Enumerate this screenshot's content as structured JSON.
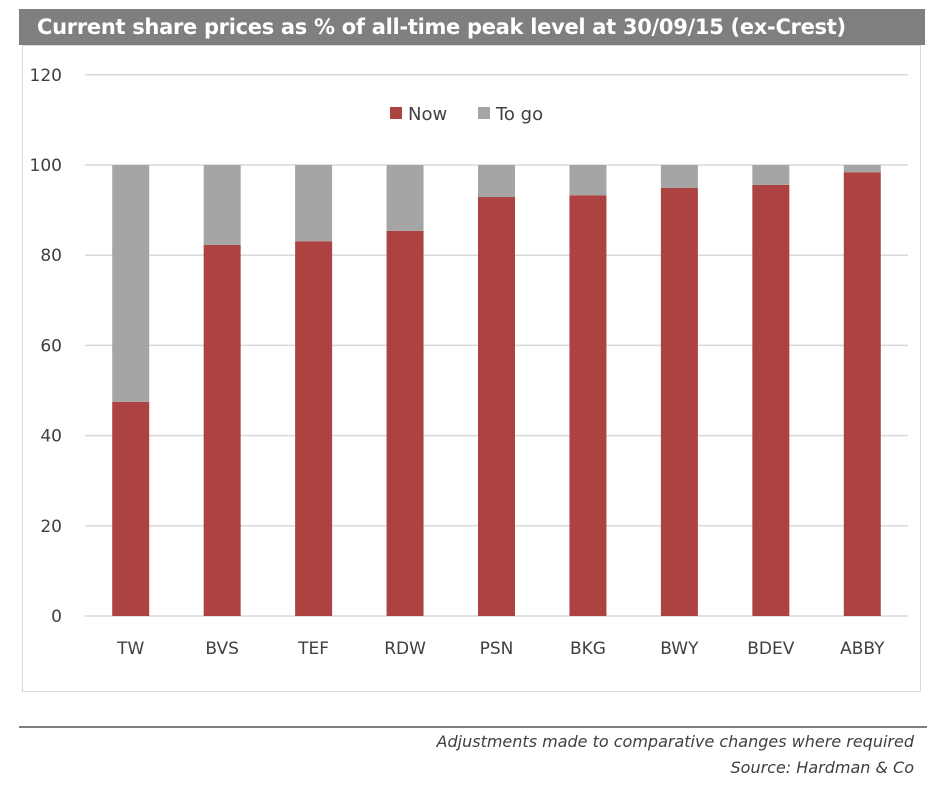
{
  "chart_data": {
    "type": "bar",
    "stacked": true,
    "title": "Current share prices as % of all-time peak level at 30/09/15 (ex-Crest)",
    "categories": [
      "TW",
      "BVS",
      "TEF",
      "RDW",
      "PSN",
      "BKG",
      "BWY",
      "BDEV",
      "ABBY"
    ],
    "series": [
      {
        "name": "Now",
        "color": "#ac4340",
        "values": [
          47.5,
          82.3,
          83.1,
          85.4,
          92.9,
          93.3,
          94.9,
          95.6,
          98.4
        ]
      },
      {
        "name": "To go",
        "color": "#a5a5a5",
        "values": [
          52.5,
          17.7,
          16.9,
          14.6,
          7.1,
          6.7,
          5.1,
          4.4,
          1.6
        ]
      }
    ],
    "yticks": [
      0,
      20,
      40,
      60,
      80,
      100,
      120
    ],
    "ylim": [
      0,
      120
    ],
    "grid": true,
    "legend": "top-center",
    "xlabel": "",
    "ylabel": ""
  },
  "footer": {
    "note": "Adjustments made to comparative changes where required",
    "source": "Source: Hardman & Co"
  }
}
